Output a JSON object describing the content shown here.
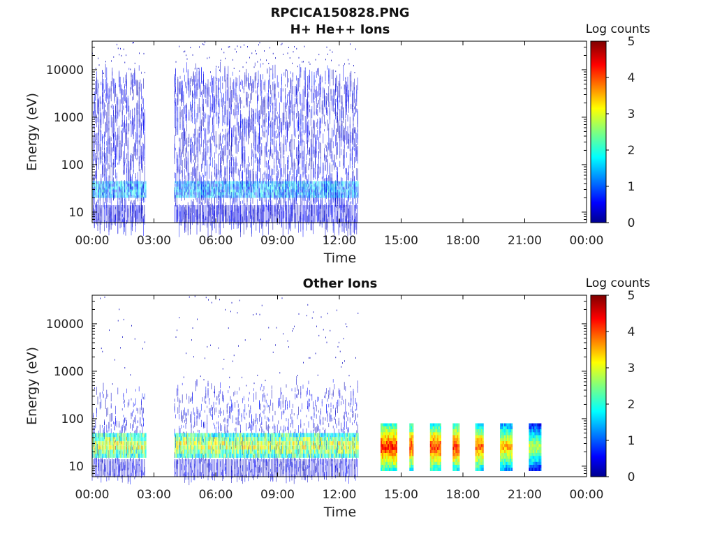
{
  "figure": {
    "title": "RPCICA150828.PNG"
  },
  "colorbar": {
    "label": "Log counts",
    "ticks": [
      "0",
      "1",
      "2",
      "3",
      "4",
      "5"
    ],
    "range": [
      0,
      5
    ],
    "colormap": "jet"
  },
  "chart_data": [
    {
      "type": "heatmap",
      "title": "H+ He++ Ions",
      "xlabel": "Time",
      "ylabel": "Energy (eV)",
      "yscale": "log",
      "ylim": [
        6,
        40000
      ],
      "xlim_hours": [
        0,
        24
      ],
      "x_ticks": [
        "00:00",
        "03:00",
        "06:00",
        "09:00",
        "12:00",
        "15:00",
        "18:00",
        "21:00",
        "00:00"
      ],
      "y_ticks": [
        "10",
        "100",
        "1000",
        "10000"
      ],
      "data_intervals_hours": [
        [
          0,
          2.6
        ],
        [
          4.0,
          12.9
        ]
      ],
      "bands": [
        {
          "energy_range_eV": [
            6,
            15000
          ],
          "log_counts": 0.3
        },
        {
          "energy_range_eV": [
            20,
            45
          ],
          "log_counts": 1.5
        }
      ]
    },
    {
      "type": "heatmap",
      "title": "Other Ions",
      "xlabel": "Time",
      "ylabel": "Energy (eV)",
      "yscale": "log",
      "ylim": [
        6,
        40000
      ],
      "xlim_hours": [
        0,
        24
      ],
      "x_ticks": [
        "00:00",
        "03:00",
        "06:00",
        "09:00",
        "12:00",
        "15:00",
        "18:00",
        "21:00",
        "00:00"
      ],
      "y_ticks": [
        "10",
        "100",
        "1000",
        "10000"
      ],
      "data_intervals_hours": [
        [
          0,
          2.6
        ],
        [
          4.0,
          12.9
        ]
      ],
      "bands": [
        {
          "energy_range_eV": [
            6,
            10000
          ],
          "log_counts": 0.2
        },
        {
          "energy_range_eV": [
            15,
            50
          ],
          "log_counts": 3.0
        }
      ],
      "bursts": [
        {
          "start_hour": 14.0,
          "end_hour": 14.8,
          "energy_range_eV": [
            8,
            80
          ],
          "peak_log_counts": 4.3
        },
        {
          "start_hour": 15.4,
          "end_hour": 15.6,
          "energy_range_eV": [
            8,
            80
          ],
          "peak_log_counts": 4.2
        },
        {
          "start_hour": 16.4,
          "end_hour": 16.9,
          "energy_range_eV": [
            8,
            80
          ],
          "peak_log_counts": 4.2
        },
        {
          "start_hour": 17.5,
          "end_hour": 17.8,
          "energy_range_eV": [
            8,
            80
          ],
          "peak_log_counts": 4.2
        },
        {
          "start_hour": 18.6,
          "end_hour": 19.0,
          "energy_range_eV": [
            8,
            80
          ],
          "peak_log_counts": 4.0
        },
        {
          "start_hour": 19.8,
          "end_hour": 20.4,
          "energy_range_eV": [
            8,
            80
          ],
          "peak_log_counts": 3.6
        },
        {
          "start_hour": 21.2,
          "end_hour": 21.8,
          "energy_range_eV": [
            8,
            80
          ],
          "peak_log_counts": 3.0
        }
      ]
    }
  ]
}
